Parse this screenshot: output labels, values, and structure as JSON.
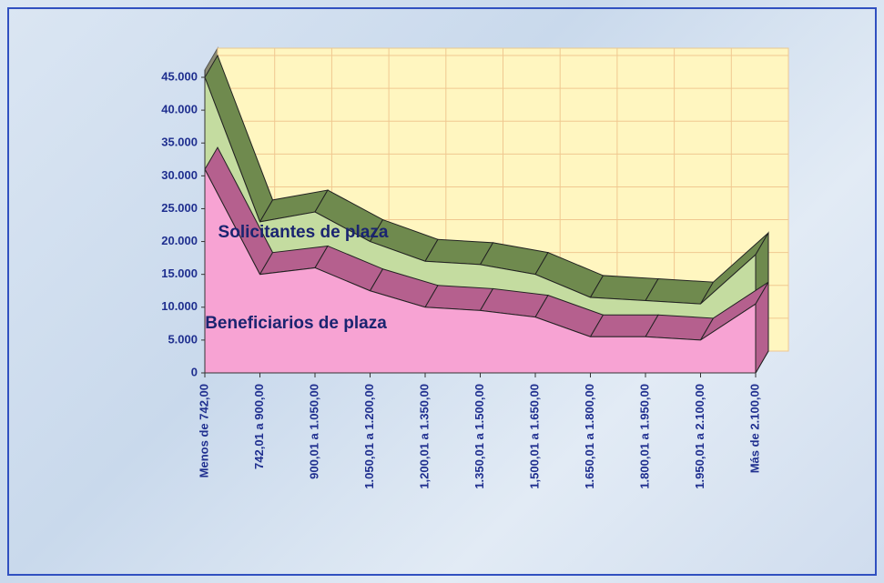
{
  "chart_data": {
    "type": "area3d",
    "categories": [
      "Menos de 742,00",
      "742,01 a 900,00",
      "900,01 a 1.050,00",
      "1.050,01 a 1.200,00",
      "1,200,01 a 1.350,00",
      "1.350,01 a 1.500,00",
      "1,500,01 a 1.650,00",
      "1.650,01 a 1.800,00",
      "1.800,01 a 1.950,00",
      "1.950,01 a 2.100,00",
      "Más de 2.100,00"
    ],
    "series": [
      {
        "name": "Solicitantes de plaza",
        "color": "#c4dca0",
        "values": [
          45000,
          23000,
          24500,
          20000,
          17000,
          16500,
          15000,
          11500,
          11000,
          10500,
          18000
        ]
      },
      {
        "name": "Beneficiarios de plaza",
        "color": "#f7a3d3",
        "values": [
          31000,
          15000,
          16000,
          12500,
          10000,
          9500,
          8500,
          5500,
          5500,
          5000,
          10500
        ]
      }
    ],
    "ylim": [
      0,
      45000
    ],
    "yticks": [
      0,
      {
        "value": 5000,
        "label": "5.000"
      },
      {
        "value": 10000,
        "label": "10.000"
      },
      {
        "value": 15000,
        "label": "15.000"
      },
      {
        "value": 20000,
        "label": "20.000"
      },
      {
        "value": 25000,
        "label": "25.000"
      },
      {
        "value": 30000,
        "label": "30.000"
      },
      {
        "value": 35000,
        "label": "35.000"
      },
      {
        "value": 40000,
        "label": "40.000"
      },
      {
        "value": 45000,
        "label": "45.000"
      }
    ],
    "grid": true
  }
}
